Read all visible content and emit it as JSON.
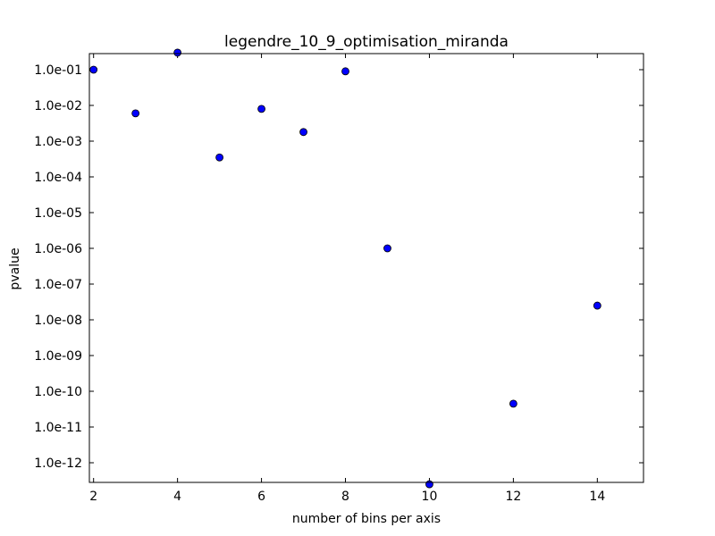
{
  "chart_data": {
    "type": "scatter",
    "title": "legendre_10_9_optimisation_miranda",
    "xlabel": "number of bins per axis",
    "ylabel": "pvalue",
    "xlim": [
      1.9,
      15.1
    ],
    "ylim_log10": [
      -12.55,
      -0.55
    ],
    "yscale": "log",
    "grid": false,
    "xticks": [
      2,
      4,
      6,
      8,
      10,
      12,
      14
    ],
    "xtick_labels": [
      "2",
      "4",
      "6",
      "8",
      "10",
      "12",
      "14"
    ],
    "yticks_log10": [
      -1,
      -2,
      -3,
      -4,
      -5,
      -6,
      -7,
      -8,
      -9,
      -10,
      -11,
      -12
    ],
    "ytick_labels": [
      "1.0e-01",
      "1.0e-02",
      "1.0e-03",
      "1.0e-04",
      "1.0e-05",
      "1.0e-06",
      "1.0e-07",
      "1.0e-08",
      "1.0e-09",
      "1.0e-10",
      "1.0e-11",
      "1.0e-12"
    ],
    "marker_color": "#0000ff",
    "marker_edge_color": "#000000",
    "x": [
      2,
      3,
      4,
      5,
      6,
      7,
      8,
      9,
      10,
      12,
      14
    ],
    "y": [
      0.1,
      0.006,
      0.3,
      0.00035,
      0.008,
      0.0018,
      0.09,
      1e-06,
      2.5e-13,
      4.5e-11,
      2.5e-08
    ]
  }
}
